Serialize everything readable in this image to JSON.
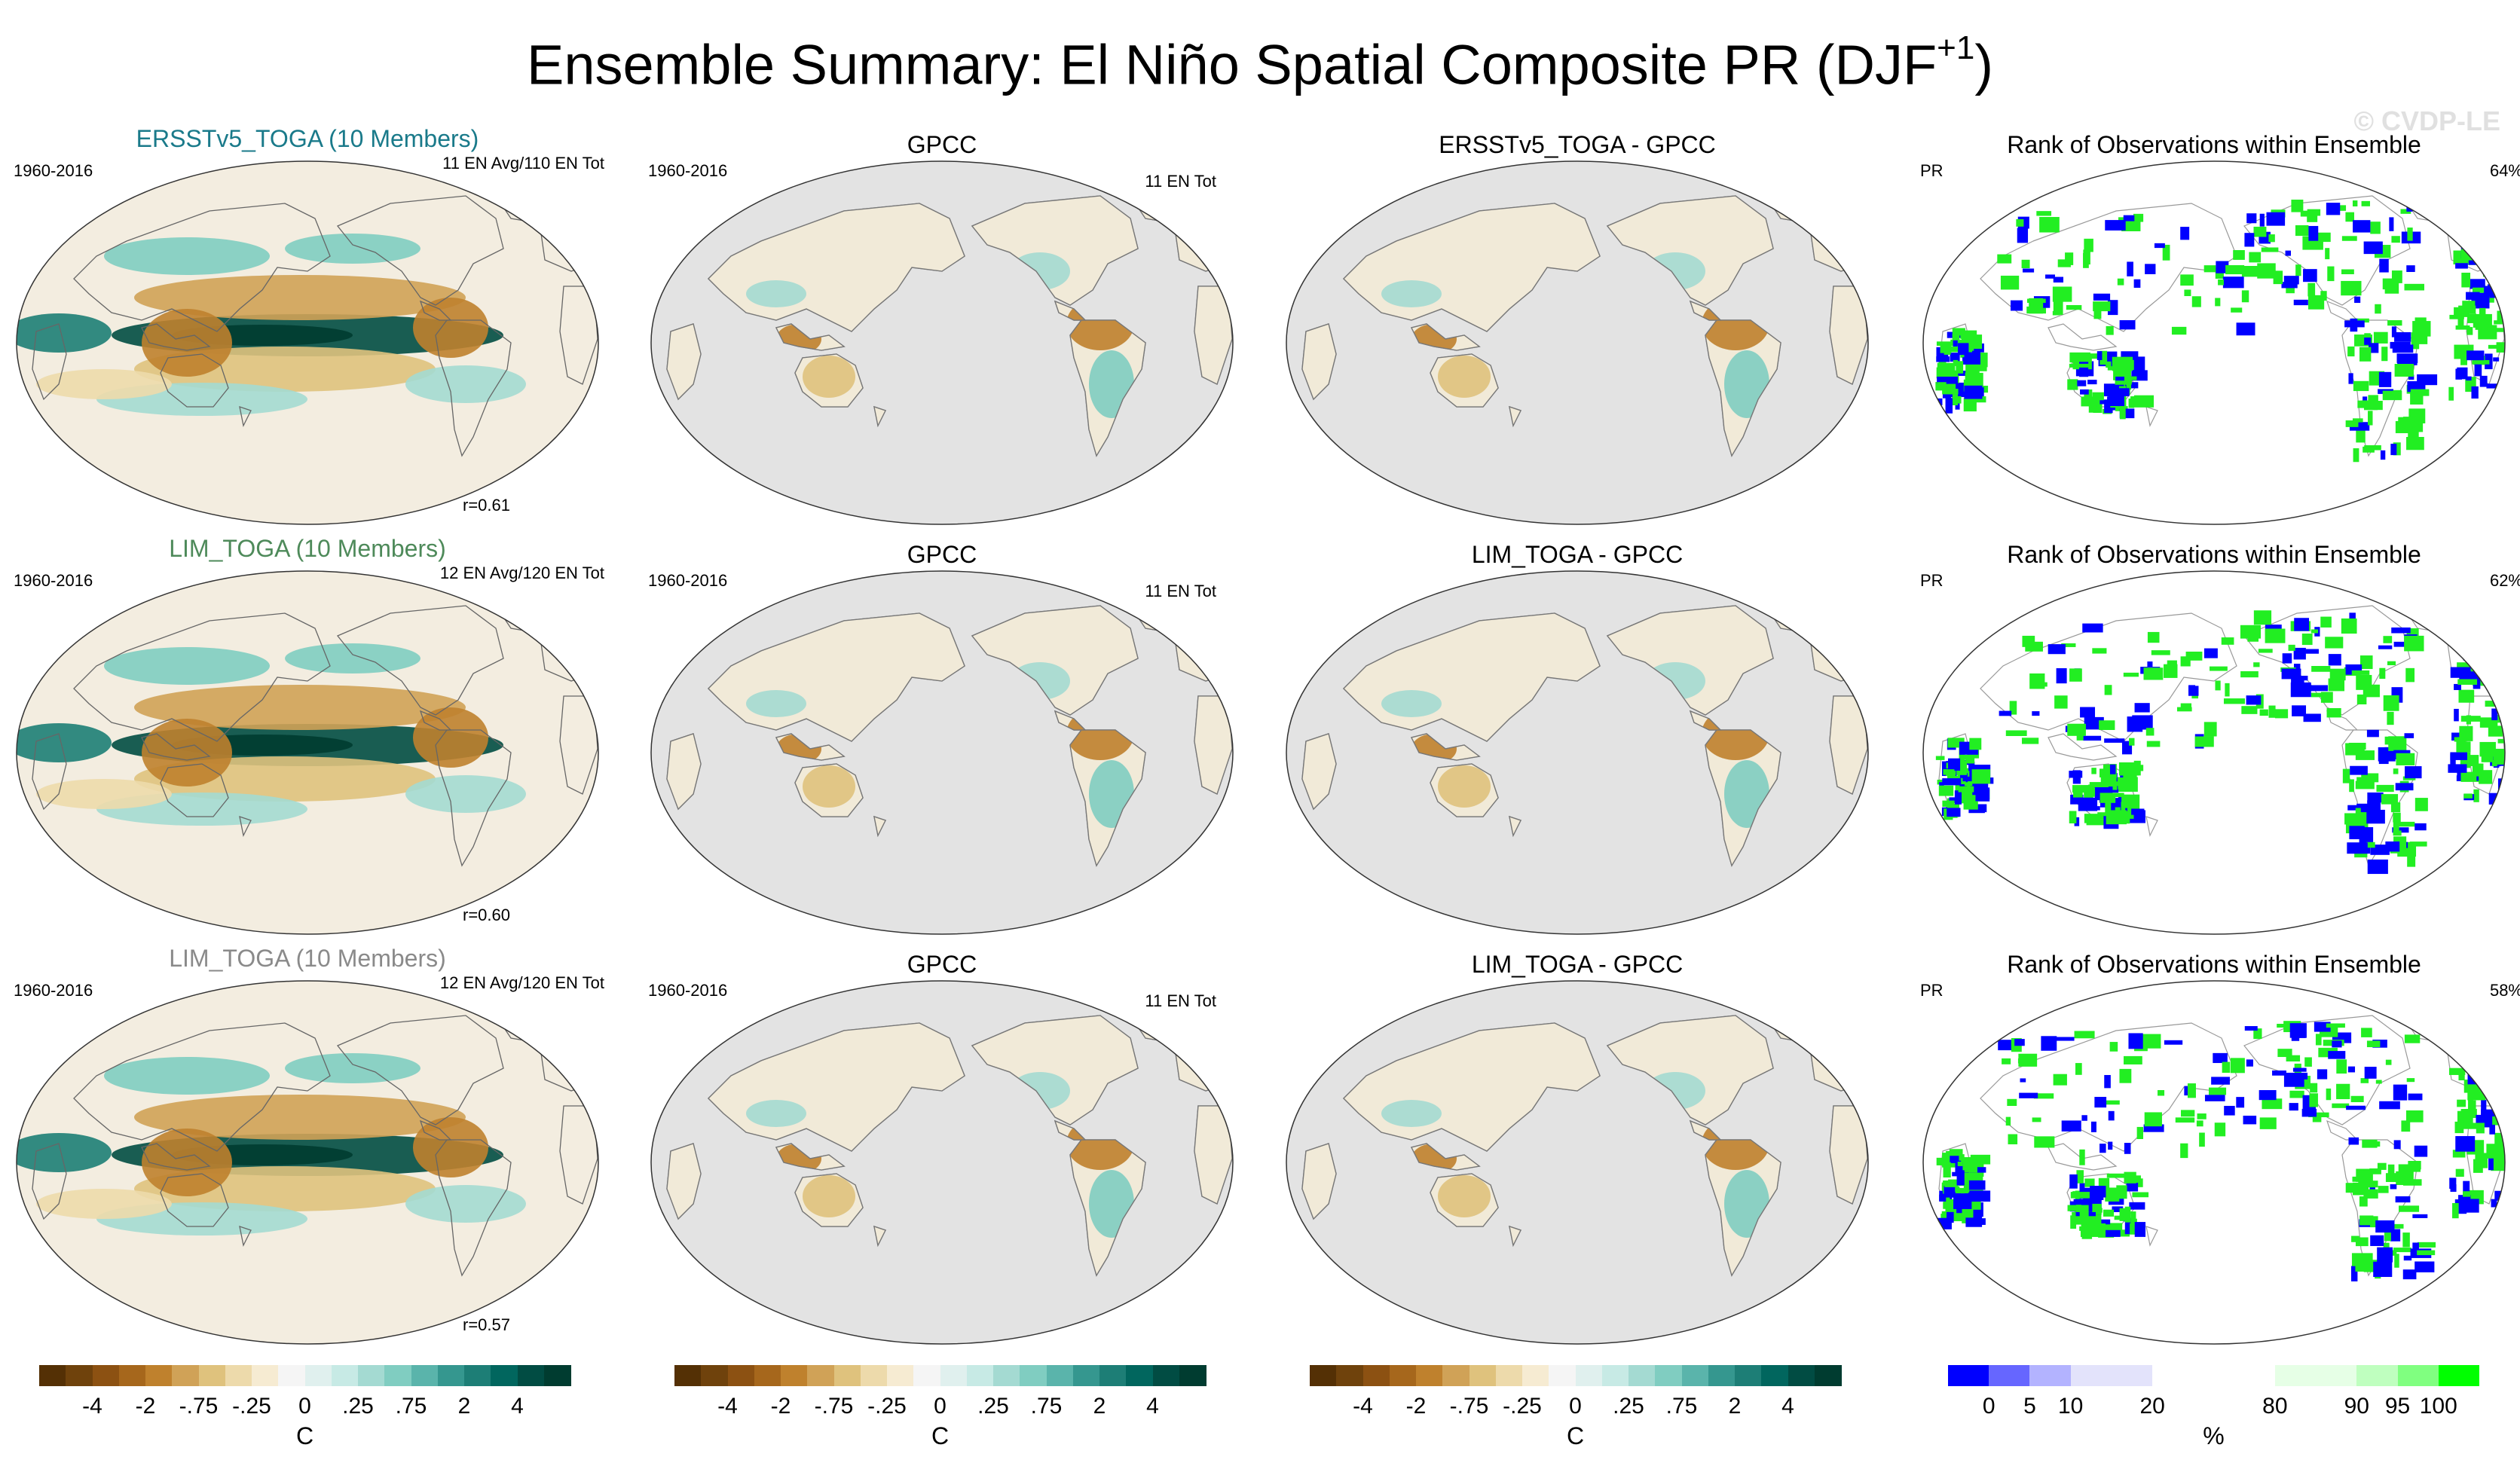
{
  "title": {
    "main": "Ensemble Summary: El Niño Spatial Composite PR (DJF",
    "sup": "+1",
    "close": ")"
  },
  "watermark": "© CVDP-LE",
  "rows": [
    {
      "model_title": "ERSSTv5_TOGA (10 Members)",
      "model_title_color": "#1a7a8a",
      "period": "1960-2016",
      "model_count": "11 EN Avg/110 EN Tot",
      "r": "r=0.61",
      "obs_title": "GPCC",
      "obs_period": "1960-2016",
      "obs_count": "11 EN Tot",
      "diff_title": "ERSSTv5_TOGA - GPCC",
      "rank_title": "Rank of Observations within Ensemble",
      "rank_var": "PR",
      "rank_pct": "64%"
    },
    {
      "model_title": "LIM_TOGA (10 Members)",
      "model_title_color": "#4e8a5a",
      "period": "1960-2016",
      "model_count": "12 EN Avg/120 EN Tot",
      "r": "r=0.60",
      "obs_title": "GPCC",
      "obs_period": "1960-2016",
      "obs_count": "11 EN Tot",
      "diff_title": "LIM_TOGA - GPCC",
      "rank_title": "Rank of Observations within Ensemble",
      "rank_var": "PR",
      "rank_pct": "62%"
    },
    {
      "model_title": "LIM_TOGA (10 Members)",
      "model_title_color": "#8a8a8a",
      "period": "1960-2016",
      "model_count": "12 EN Avg/120 EN Tot",
      "r": "r=0.57",
      "obs_title": "GPCC",
      "obs_period": "1960-2016",
      "obs_count": "11 EN Tot",
      "diff_title": "LIM_TOGA - GPCC",
      "rank_title": "Rank of Observations within Ensemble",
      "rank_var": "PR",
      "rank_pct": "58%"
    }
  ],
  "colorbars": {
    "brbg": {
      "colors": [
        "#543005",
        "#6f420c",
        "#8c5112",
        "#a6671c",
        "#bf812d",
        "#d0a257",
        "#dfc27d",
        "#eddaab",
        "#f6ebd2",
        "#f5f5f5",
        "#e0f0ee",
        "#c7eae5",
        "#a4dad2",
        "#80cdc1",
        "#5ab4ab",
        "#35978f",
        "#1d7e76",
        "#01665e",
        "#014c43",
        "#003c30"
      ],
      "labels": [
        "-4",
        "-2",
        "-.75",
        "-.25",
        "0",
        ".25",
        ".75",
        "2",
        "4"
      ],
      "unit": "C"
    },
    "rank": {
      "colors": [
        "#0000ff",
        "#6666ff",
        "#b3b3ff",
        "#e3e3fb",
        "#e3e3fb",
        "#ffffff",
        "#ffffff",
        "#ffffff",
        "#e6ffe6",
        "#e6ffe6",
        "#bfffbf",
        "#80ff80",
        "#00ff00"
      ],
      "labels": [
        "0",
        "5",
        "10",
        "20",
        "80",
        "90",
        "95",
        "100"
      ],
      "unit": "%"
    }
  },
  "colors": {
    "land_gray": "#e3e3e3",
    "rank_low": "#0000ff",
    "rank_high": "#22ee22"
  }
}
